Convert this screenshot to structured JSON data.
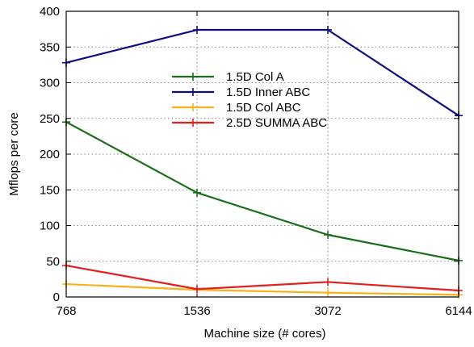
{
  "chart_data": {
    "type": "line",
    "title": "",
    "xlabel": "Machine size (# cores)",
    "ylabel": "Mflops per core",
    "categories": [
      "768",
      "1536",
      "3072",
      "6144"
    ],
    "ylim": [
      0,
      400
    ],
    "yticks": [
      "0",
      "50",
      "100",
      "150",
      "200",
      "250",
      "300",
      "350",
      "400"
    ],
    "grid": true,
    "legend_position": "top-center",
    "series": [
      {
        "name": "1.5D Col A",
        "color": "#1a6e1a",
        "values": [
          245,
          146,
          87,
          51
        ]
      },
      {
        "name": "1.5D Inner ABC",
        "color": "#0d0d80",
        "values": [
          328,
          374,
          374,
          254
        ]
      },
      {
        "name": "1.5D Col ABC",
        "color": "#f7b21a",
        "values": [
          18,
          10,
          6,
          3
        ]
      },
      {
        "name": "2.5D SUMMA ABC",
        "color": "#e51e1e",
        "values": [
          44,
          11,
          21,
          9
        ]
      }
    ]
  }
}
